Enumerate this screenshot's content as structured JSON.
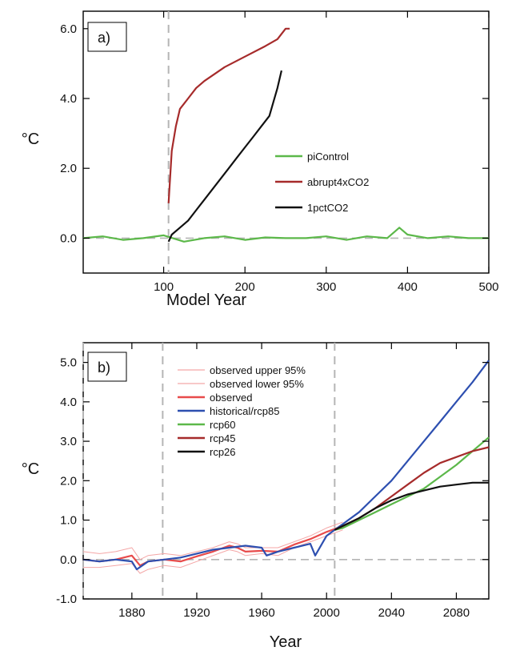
{
  "chart_data": [
    {
      "type": "line",
      "panel_label": "a)",
      "xlabel": "Model Year",
      "ylabel": "°C",
      "xlim": [
        1,
        500
      ],
      "ylim": [
        -1.0,
        6.5
      ],
      "x_ticks": [
        100,
        200,
        300,
        400,
        500
      ],
      "y_ticks": [
        0.0,
        2.0,
        4.0,
        6.0
      ],
      "y_tick_labels": [
        "0.0",
        "2.0",
        "4.0",
        "6.0"
      ],
      "reference_line": {
        "y": 0
      },
      "vline_dashed": [
        106
      ],
      "legend_position": "center-right",
      "series": [
        {
          "name": "piControl",
          "color": "#5cb84a",
          "x": [
            1,
            25,
            50,
            75,
            100,
            125,
            150,
            175,
            200,
            225,
            250,
            275,
            300,
            325,
            350,
            375,
            390,
            400,
            425,
            450,
            475,
            500
          ],
          "y": [
            0.0,
            0.05,
            -0.05,
            0.0,
            0.08,
            -0.1,
            0.0,
            0.05,
            -0.05,
            0.02,
            0.0,
            0.0,
            0.05,
            -0.05,
            0.05,
            0.0,
            0.3,
            0.1,
            0.0,
            0.05,
            0.0,
            0.0
          ]
        },
        {
          "name": "abrupt4xCO2",
          "color": "#a62b2b",
          "x": [
            106,
            110,
            115,
            120,
            130,
            140,
            150,
            175,
            200,
            225,
            240,
            250,
            255
          ],
          "y": [
            1.0,
            2.5,
            3.2,
            3.7,
            4.0,
            4.3,
            4.5,
            4.9,
            5.2,
            5.5,
            5.7,
            6.0,
            6.0
          ]
        },
        {
          "name": "1pctCO2",
          "color": "#111111",
          "x": [
            106,
            110,
            120,
            130,
            140,
            150,
            160,
            170,
            180,
            190,
            200,
            210,
            220,
            230,
            240,
            245
          ],
          "y": [
            -0.1,
            0.1,
            0.3,
            0.5,
            0.8,
            1.1,
            1.4,
            1.7,
            2.0,
            2.3,
            2.6,
            2.9,
            3.2,
            3.5,
            4.3,
            4.8
          ]
        }
      ]
    },
    {
      "type": "line",
      "panel_label": "b)",
      "xlabel": "Year",
      "ylabel": "°C",
      "xlim": [
        1850,
        2100
      ],
      "ylim": [
        -1.0,
        5.5
      ],
      "x_ticks": [
        1880,
        1920,
        1960,
        2000,
        2040,
        2080
      ],
      "y_ticks": [
        -1.0,
        0.0,
        1.0,
        2.0,
        3.0,
        4.0,
        5.0
      ],
      "y_tick_labels": [
        "-1.0",
        "0.0",
        "1.0",
        "2.0",
        "3.0",
        "4.0",
        "5.0"
      ],
      "reference_line": {
        "y": 0
      },
      "vline_dashed": [
        1850,
        1899,
        2005
      ],
      "legend_position": "top-left",
      "series": [
        {
          "name": "observed upper 95%",
          "color": "#f4a6a6",
          "x": [
            1850,
            1860,
            1870,
            1880,
            1885,
            1890,
            1900,
            1910,
            1920,
            1930,
            1940,
            1945,
            1950,
            1960,
            1970,
            1980,
            1990,
            2000,
            2010
          ],
          "y": [
            0.2,
            0.15,
            0.2,
            0.3,
            0.0,
            0.1,
            0.15,
            0.1,
            0.2,
            0.3,
            0.45,
            0.4,
            0.3,
            0.3,
            0.3,
            0.45,
            0.6,
            0.8,
            0.95
          ]
        },
        {
          "name": "observed lower 95%",
          "color": "#f4a6a6",
          "x": [
            1850,
            1860,
            1870,
            1880,
            1885,
            1890,
            1900,
            1910,
            1920,
            1930,
            1940,
            1945,
            1950,
            1960,
            1970,
            1980,
            1990,
            2000,
            2010
          ],
          "y": [
            -0.2,
            -0.2,
            -0.15,
            -0.1,
            -0.35,
            -0.25,
            -0.15,
            -0.2,
            -0.05,
            0.1,
            0.25,
            0.2,
            0.1,
            0.15,
            0.1,
            0.3,
            0.45,
            0.6,
            0.75
          ]
        },
        {
          "name": "observed",
          "color": "#e84b4b",
          "x": [
            1850,
            1860,
            1870,
            1880,
            1885,
            1890,
            1900,
            1910,
            1920,
            1930,
            1940,
            1945,
            1950,
            1960,
            1970,
            1980,
            1990,
            2000,
            2010
          ],
          "y": [
            0.0,
            -0.05,
            0.0,
            0.1,
            -0.15,
            -0.05,
            0.0,
            -0.05,
            0.08,
            0.2,
            0.35,
            0.3,
            0.2,
            0.22,
            0.2,
            0.38,
            0.52,
            0.7,
            0.85
          ]
        },
        {
          "name": "historical/rcp85",
          "color": "#2d4fb0",
          "x": [
            1850,
            1860,
            1870,
            1880,
            1883,
            1890,
            1900,
            1910,
            1920,
            1930,
            1940,
            1950,
            1960,
            1963,
            1970,
            1980,
            1990,
            1993,
            2000,
            2005,
            2010,
            2020,
            2030,
            2040,
            2050,
            2060,
            2070,
            2080,
            2090,
            2100
          ],
          "y": [
            0.0,
            -0.05,
            0.0,
            -0.05,
            -0.25,
            -0.05,
            0.0,
            0.05,
            0.15,
            0.25,
            0.3,
            0.35,
            0.3,
            0.1,
            0.2,
            0.3,
            0.4,
            0.1,
            0.6,
            0.75,
            0.9,
            1.2,
            1.6,
            2.0,
            2.5,
            3.0,
            3.5,
            4.0,
            4.5,
            5.05
          ]
        },
        {
          "name": "rcp60",
          "color": "#5cb84a",
          "x": [
            2005,
            2010,
            2020,
            2030,
            2040,
            2050,
            2060,
            2070,
            2080,
            2090,
            2100
          ],
          "y": [
            0.75,
            0.8,
            1.0,
            1.2,
            1.4,
            1.6,
            1.8,
            2.1,
            2.4,
            2.75,
            3.1
          ]
        },
        {
          "name": "rcp45",
          "color": "#a62b2b",
          "x": [
            2005,
            2010,
            2020,
            2030,
            2040,
            2050,
            2060,
            2070,
            2080,
            2090,
            2100
          ],
          "y": [
            0.75,
            0.85,
            1.05,
            1.3,
            1.6,
            1.9,
            2.2,
            2.45,
            2.6,
            2.75,
            2.85
          ]
        },
        {
          "name": "rcp26",
          "color": "#111111",
          "x": [
            2005,
            2010,
            2020,
            2030,
            2040,
            2050,
            2060,
            2070,
            2080,
            2090,
            2100
          ],
          "y": [
            0.75,
            0.85,
            1.05,
            1.3,
            1.5,
            1.65,
            1.75,
            1.85,
            1.9,
            1.95,
            1.95
          ]
        }
      ]
    }
  ]
}
